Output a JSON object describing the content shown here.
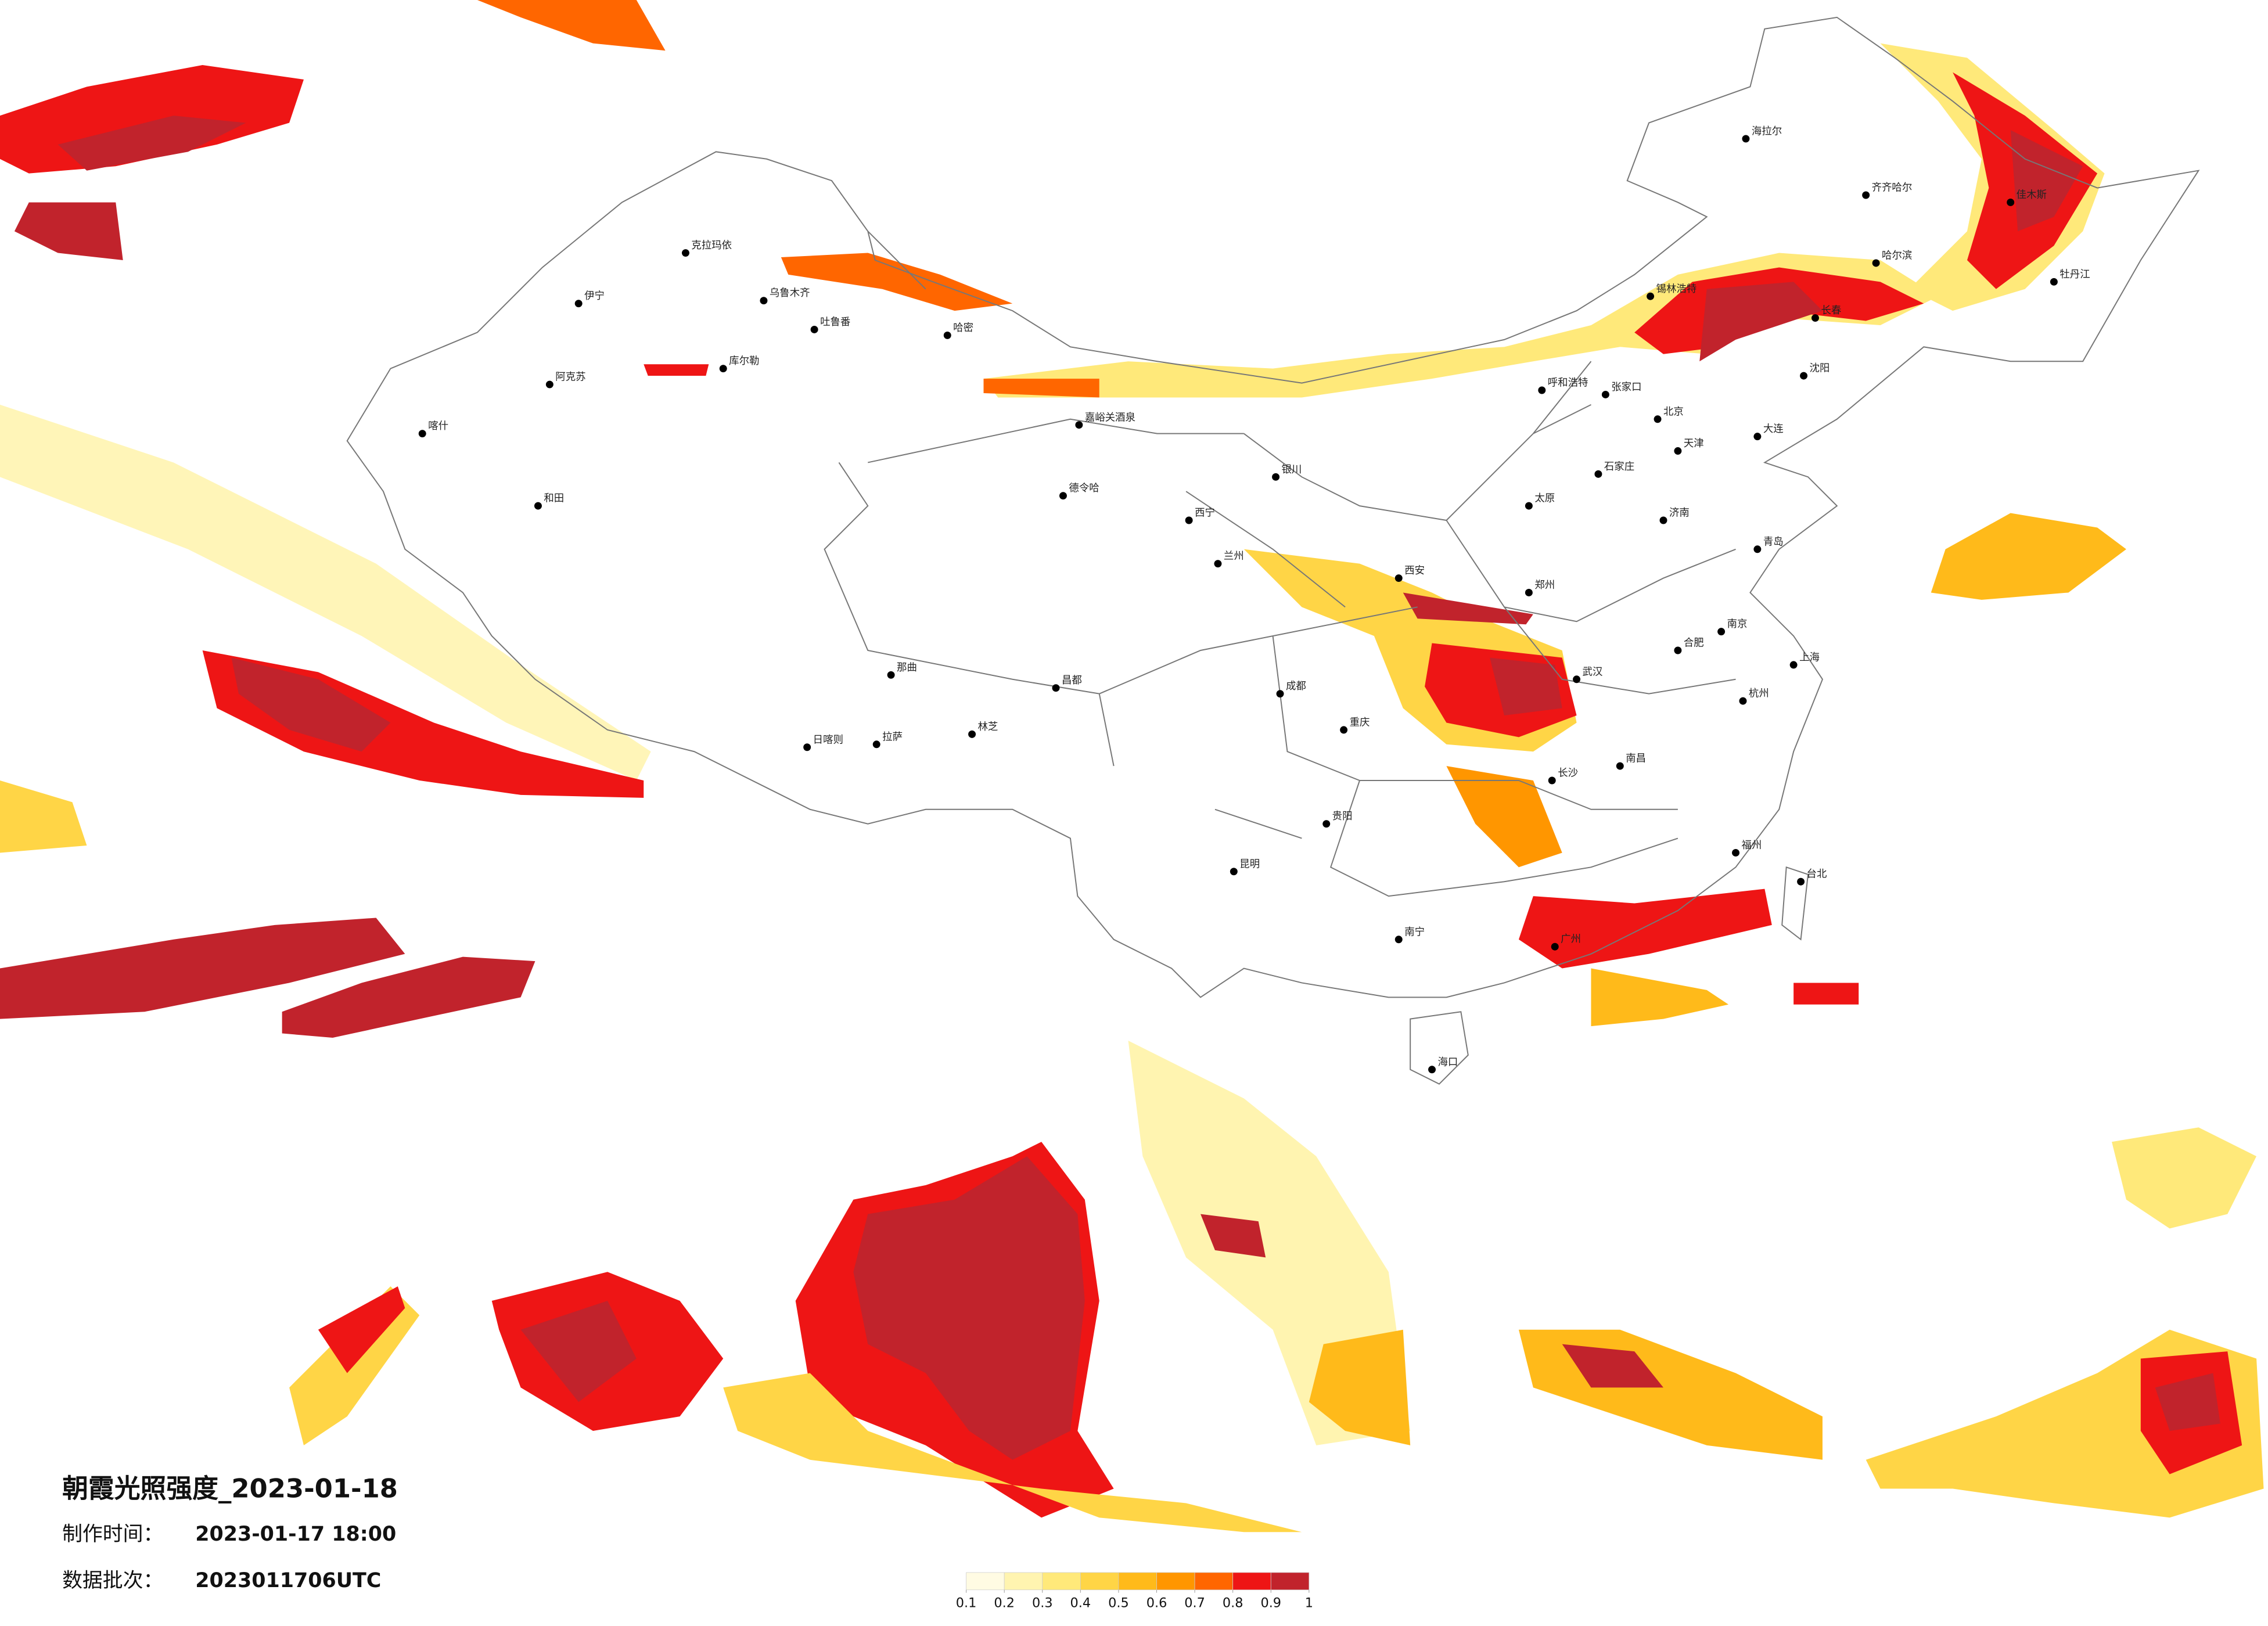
{
  "header": {
    "title": "朝霞光照强度_2023-01-18",
    "made_label": "制作时间：",
    "made_value": "2023-01-17 18:00",
    "batch_label": "数据批次：",
    "batch_value": "2023011706UTC"
  },
  "legend": {
    "ticks": [
      0.1,
      0.2,
      0.3,
      0.4,
      0.5,
      0.6,
      0.7,
      0.8,
      0.9,
      1
    ],
    "colors": [
      "#fffbe3",
      "#fff4b0",
      "#ffe97a",
      "#ffd546",
      "#ffba1a",
      "#ff9600",
      "#ff6600",
      "#ee1515",
      "#c1232c"
    ]
  },
  "cities": [
    {
      "name": "克拉玛依"
    },
    {
      "name": "伊宁"
    },
    {
      "name": "阿克苏"
    },
    {
      "name": "喀什"
    },
    {
      "name": "和田"
    },
    {
      "name": "哈密"
    },
    {
      "name": "吐鲁番"
    },
    {
      "name": "乌鲁木齐"
    },
    {
      "name": "库尔勒"
    },
    {
      "name": "嘉峪关酒泉"
    },
    {
      "name": "德令哈"
    },
    {
      "name": "拉萨"
    },
    {
      "name": "日喀则"
    },
    {
      "name": "那曲"
    },
    {
      "name": "林芝"
    },
    {
      "name": "昌都"
    },
    {
      "name": "西宁"
    },
    {
      "name": "兰州"
    },
    {
      "name": "银川"
    },
    {
      "name": "呼和浩特"
    },
    {
      "name": "北京"
    },
    {
      "name": "天津"
    },
    {
      "name": "石家庄"
    },
    {
      "name": "太原"
    },
    {
      "name": "济南"
    },
    {
      "name": "郑州"
    },
    {
      "name": "西安"
    },
    {
      "name": "成都"
    },
    {
      "name": "重庆"
    },
    {
      "name": "贵阳"
    },
    {
      "name": "昆明"
    },
    {
      "name": "南宁"
    },
    {
      "name": "广州"
    },
    {
      "name": "福州"
    },
    {
      "name": "南昌"
    },
    {
      "name": "长沙"
    },
    {
      "name": "武汉"
    },
    {
      "name": "合肥"
    },
    {
      "name": "南京"
    },
    {
      "name": "上海"
    },
    {
      "name": "杭州"
    },
    {
      "name": "台北"
    },
    {
      "name": "海口"
    },
    {
      "name": "沈阳"
    },
    {
      "name": "长春"
    },
    {
      "name": "哈尔滨"
    },
    {
      "name": "大连"
    },
    {
      "name": "青岛"
    },
    {
      "name": "齐齐哈尔"
    },
    {
      "name": "海拉尔"
    },
    {
      "name": "佳木斯"
    },
    {
      "name": "牡丹江"
    },
    {
      "name": "锡林浩特"
    },
    {
      "name": "张家口"
    }
  ]
}
